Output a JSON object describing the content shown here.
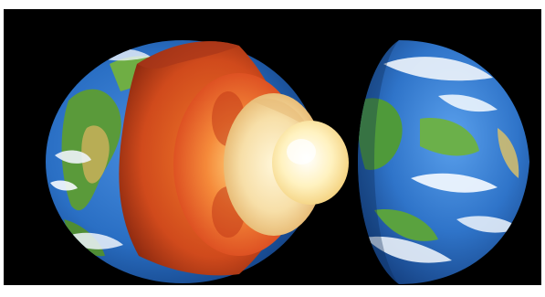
{
  "image": {
    "subject": "earth-interior-layers",
    "layers": [
      "crust",
      "mantle",
      "outer-core",
      "inner-core"
    ],
    "colors": {
      "background": "#000000",
      "frame": "#ffffff",
      "ocean": "#2a6fc4",
      "land": "#4f9a3a",
      "cloud": "#eef4fb",
      "crust": "#c8461c",
      "mantle": "#e8612a",
      "outer_core": "#f4d59a",
      "inner_core": "#fff3c2"
    }
  }
}
